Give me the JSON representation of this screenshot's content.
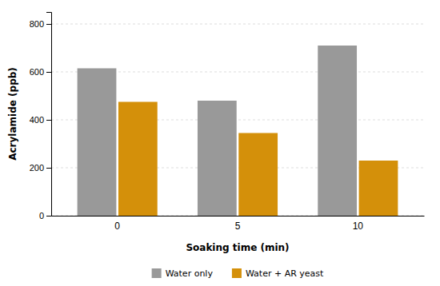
{
  "chart_data": {
    "type": "bar",
    "categories": [
      "0",
      "5",
      "10"
    ],
    "series": [
      {
        "name": "Water only",
        "color": "#999999",
        "values": [
          615,
          480,
          710
        ]
      },
      {
        "name": "Water + AR yeast",
        "color": "#D4900A",
        "values": [
          475,
          345,
          230
        ]
      }
    ],
    "xlabel": "Soaking time (min)",
    "ylabel": "Acrylamide (ppb)",
    "ylim": [
      0,
      850
    ],
    "yticks": [
      0,
      200,
      400,
      600,
      800
    ],
    "grid": true,
    "legend": "bottom"
  }
}
